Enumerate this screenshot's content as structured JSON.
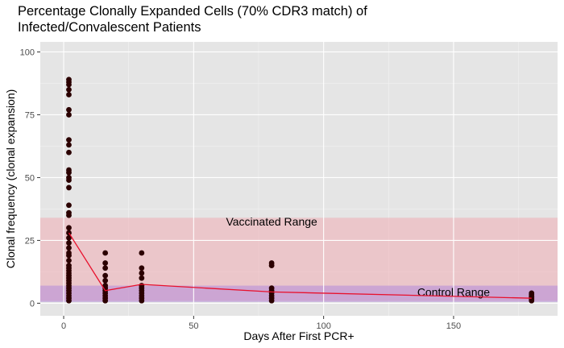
{
  "title_lines": [
    "Percentage Clonally Expanded Cells (70% CDR3 match) of",
    "Infected/Convalescent Patients"
  ],
  "colors": {
    "panel": "#e5e5e5",
    "grid_major": "#ffffff",
    "grid_minor": "#f2f2f2",
    "point": "#2b0000",
    "line": "#e8112d",
    "vaccinated_band": "#f2a0a8",
    "control_band": "#b890d8"
  },
  "chart_data": {
    "type": "scatter",
    "title": "Percentage Clonally Expanded Cells (70% CDR3 match) of Infected/Convalescent Patients",
    "xlabel": "Days After First PCR+",
    "ylabel": "Clonal frequency (clonal expansion)",
    "xlim": [
      -9,
      190
    ],
    "ylim": [
      -5,
      104
    ],
    "x_ticks": [
      0,
      50,
      100,
      150
    ],
    "y_ticks": [
      0,
      25,
      50,
      75,
      100
    ],
    "grid": true,
    "bands": [
      {
        "label": "Vaccinated Range",
        "ymin": 1,
        "ymax": 34,
        "label_x": 80,
        "label_y": 32.5
      },
      {
        "label": "Control Range",
        "ymin": 0.5,
        "ymax": 7,
        "label_x": 150,
        "label_y": 4.5
      }
    ],
    "points": [
      {
        "x": 2,
        "y": 89
      },
      {
        "x": 2,
        "y": 88
      },
      {
        "x": 2,
        "y": 87
      },
      {
        "x": 2,
        "y": 85
      },
      {
        "x": 2,
        "y": 83
      },
      {
        "x": 2,
        "y": 77
      },
      {
        "x": 2,
        "y": 75
      },
      {
        "x": 2,
        "y": 65
      },
      {
        "x": 2,
        "y": 63
      },
      {
        "x": 2,
        "y": 60
      },
      {
        "x": 2,
        "y": 53
      },
      {
        "x": 2,
        "y": 52
      },
      {
        "x": 2,
        "y": 50
      },
      {
        "x": 2,
        "y": 49
      },
      {
        "x": 2,
        "y": 46
      },
      {
        "x": 2,
        "y": 39
      },
      {
        "x": 2,
        "y": 36
      },
      {
        "x": 2,
        "y": 35
      },
      {
        "x": 2,
        "y": 30
      },
      {
        "x": 2,
        "y": 28
      },
      {
        "x": 2,
        "y": 26
      },
      {
        "x": 2,
        "y": 24
      },
      {
        "x": 2,
        "y": 22
      },
      {
        "x": 2,
        "y": 20
      },
      {
        "x": 2,
        "y": 19
      },
      {
        "x": 2,
        "y": 17
      },
      {
        "x": 2,
        "y": 15
      },
      {
        "x": 2,
        "y": 14
      },
      {
        "x": 2,
        "y": 13
      },
      {
        "x": 2,
        "y": 12
      },
      {
        "x": 2,
        "y": 11
      },
      {
        "x": 2,
        "y": 10
      },
      {
        "x": 2,
        "y": 9
      },
      {
        "x": 2,
        "y": 8
      },
      {
        "x": 2,
        "y": 7
      },
      {
        "x": 2,
        "y": 6
      },
      {
        "x": 2,
        "y": 5
      },
      {
        "x": 2,
        "y": 4
      },
      {
        "x": 2,
        "y": 3
      },
      {
        "x": 2,
        "y": 2
      },
      {
        "x": 2,
        "y": 1
      },
      {
        "x": 16,
        "y": 20
      },
      {
        "x": 16,
        "y": 16
      },
      {
        "x": 16,
        "y": 14
      },
      {
        "x": 16,
        "y": 11
      },
      {
        "x": 16,
        "y": 9
      },
      {
        "x": 16,
        "y": 7
      },
      {
        "x": 16,
        "y": 6
      },
      {
        "x": 16,
        "y": 5
      },
      {
        "x": 16,
        "y": 4
      },
      {
        "x": 16,
        "y": 3
      },
      {
        "x": 16,
        "y": 2
      },
      {
        "x": 16,
        "y": 1
      },
      {
        "x": 30,
        "y": 20
      },
      {
        "x": 30,
        "y": 14
      },
      {
        "x": 30,
        "y": 12
      },
      {
        "x": 30,
        "y": 10
      },
      {
        "x": 30,
        "y": 7
      },
      {
        "x": 30,
        "y": 6
      },
      {
        "x": 30,
        "y": 5
      },
      {
        "x": 30,
        "y": 4
      },
      {
        "x": 30,
        "y": 3
      },
      {
        "x": 30,
        "y": 2
      },
      {
        "x": 30,
        "y": 1
      },
      {
        "x": 80,
        "y": 16
      },
      {
        "x": 80,
        "y": 15
      },
      {
        "x": 80,
        "y": 6
      },
      {
        "x": 80,
        "y": 5
      },
      {
        "x": 80,
        "y": 4
      },
      {
        "x": 80,
        "y": 3
      },
      {
        "x": 80,
        "y": 2
      },
      {
        "x": 80,
        "y": 1
      },
      {
        "x": 180,
        "y": 4
      },
      {
        "x": 180,
        "y": 3.5
      },
      {
        "x": 180,
        "y": 3
      },
      {
        "x": 180,
        "y": 2.5
      },
      {
        "x": 180,
        "y": 2
      },
      {
        "x": 180,
        "y": 1.5
      },
      {
        "x": 180,
        "y": 1
      }
    ],
    "trend_line": {
      "x": [
        2,
        16,
        30,
        80,
        180
      ],
      "y": [
        28,
        5,
        7.5,
        4.5,
        2
      ]
    }
  }
}
